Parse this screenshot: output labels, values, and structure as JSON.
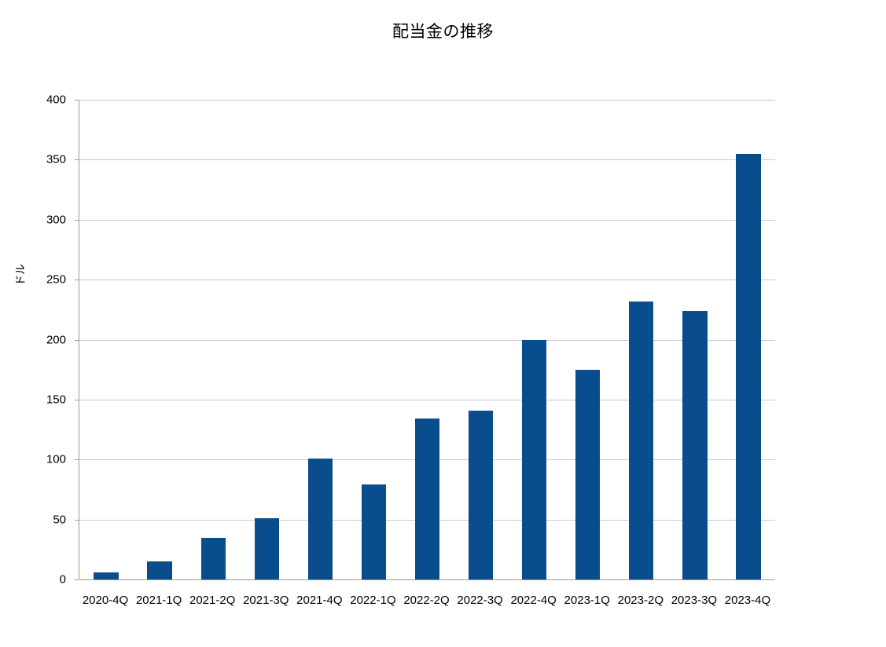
{
  "chart_data": {
    "type": "bar",
    "title": "配当金の推移",
    "ylabel": "ドル",
    "xlabel": "",
    "categories": [
      "2020-4Q",
      "2021-1Q",
      "2021-2Q",
      "2021-3Q",
      "2021-4Q",
      "2022-1Q",
      "2022-2Q",
      "2022-3Q",
      "2022-4Q",
      "2023-1Q",
      "2023-2Q",
      "2023-3Q",
      "2023-4Q"
    ],
    "values": [
      6,
      15,
      35,
      51,
      101,
      79,
      134,
      141,
      200,
      175,
      232,
      224,
      355
    ],
    "ylim": [
      0,
      400
    ],
    "y_tick_step": 50,
    "grid": true,
    "legend": "none",
    "bar_color": "#0a4d8c",
    "grid_color": "#c9c9c9",
    "axis_color": "#9a9a9a",
    "text_color": "#000000",
    "background": "#ffffff"
  }
}
